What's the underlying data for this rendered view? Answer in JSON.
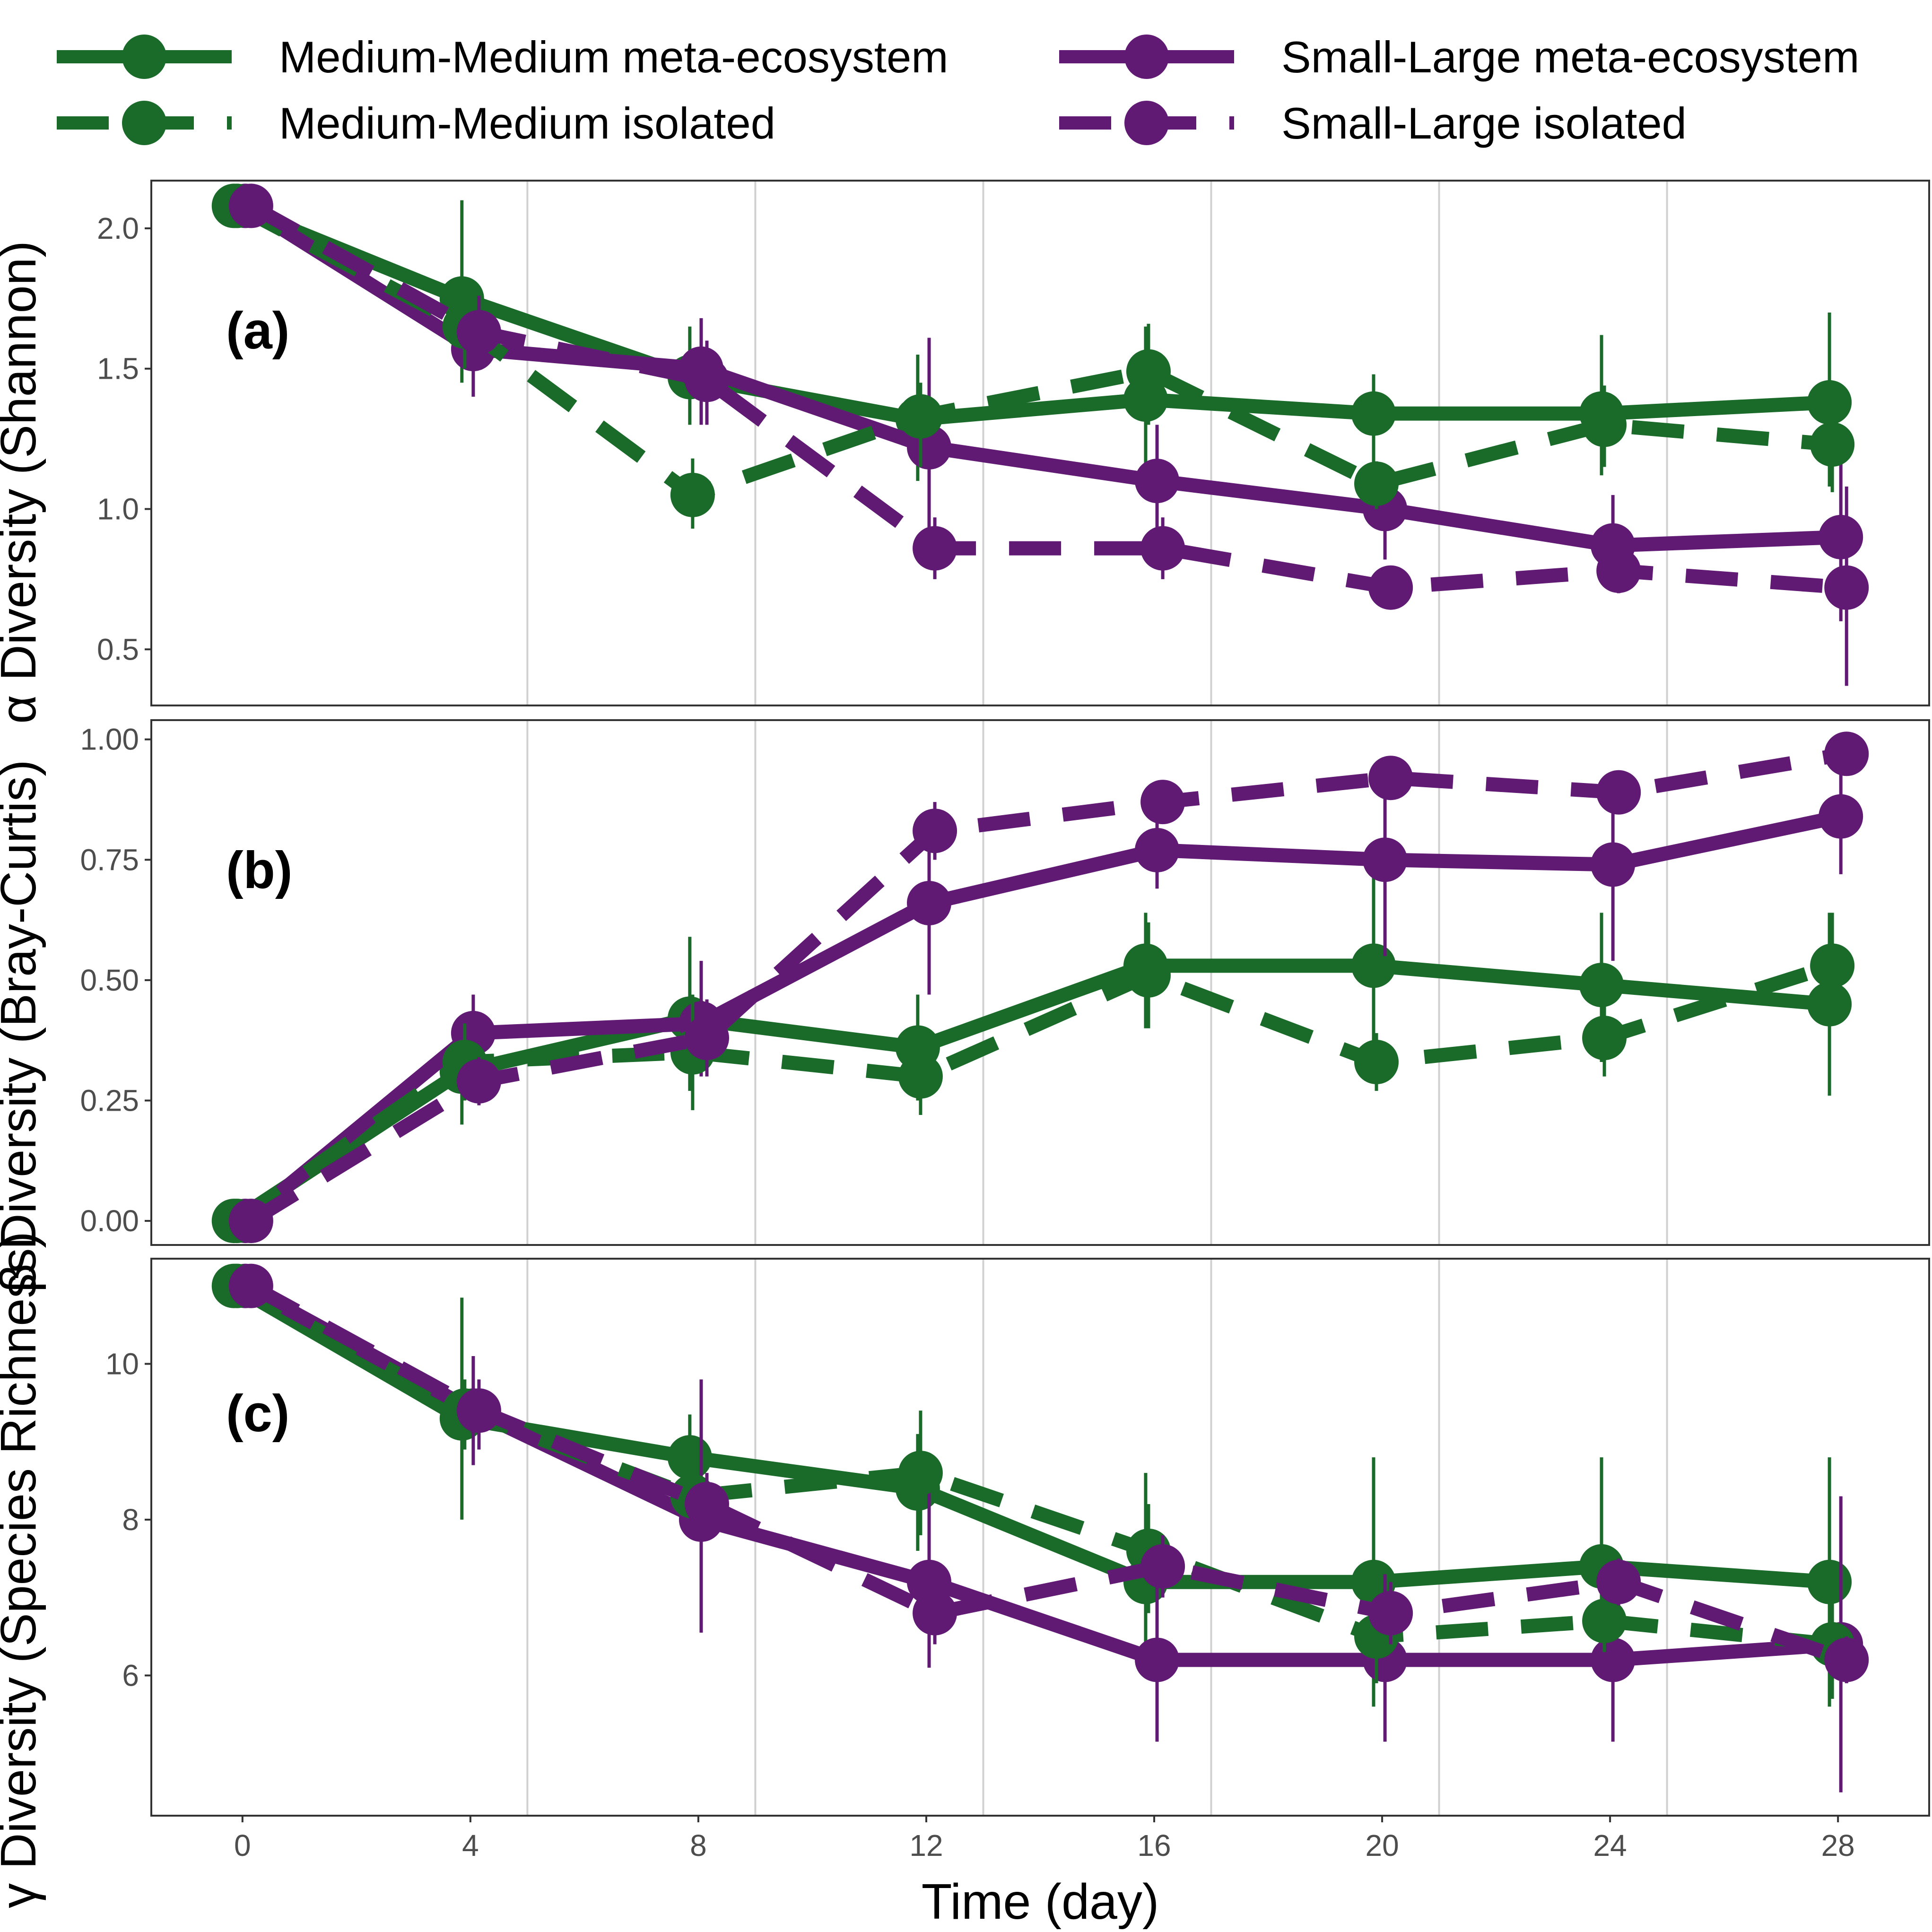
{
  "chart_data": {
    "type": "line",
    "xlabel": "Time (day)",
    "x_ticks": [
      0,
      4,
      8,
      12,
      16,
      20,
      24,
      28
    ],
    "xlim": [
      -1.6,
      29.6
    ],
    "colors": {
      "green": "#1a6b2a",
      "purple": "#601a73",
      "grid": "#d0d0d0",
      "frame": "#333333"
    },
    "legend": {
      "position": "top",
      "entries": [
        {
          "label": "Medium-Medium meta-ecosystem",
          "color": "#1a6b2a",
          "style": "solid"
        },
        {
          "label": "Small-Large meta-ecosystem",
          "color": "#601a73",
          "style": "solid"
        },
        {
          "label": "Medium-Medium isolated",
          "color": "#1a6b2a",
          "style": "dashed"
        },
        {
          "label": "Small-Large isolated",
          "color": "#601a73",
          "style": "dashed"
        }
      ]
    },
    "panels": [
      {
        "tag": "(a)",
        "ylabel": "α Diversity (Shannon)",
        "ylim": [
          0.3,
          2.17
        ],
        "y_ticks": [
          0.5,
          1.0,
          1.5,
          2.0
        ],
        "y_tick_labels": [
          "0.5",
          "1.0",
          "1.5",
          "2.0"
        ],
        "series": [
          {
            "key": "MM_meta",
            "x": [
              0,
              4,
              8,
              12,
              16,
              20,
              24,
              28
            ],
            "values": [
              2.08,
              1.75,
              1.47,
              1.32,
              1.39,
              1.34,
              1.34,
              1.38
            ],
            "err_low": [
              2.08,
              1.45,
              1.3,
              1.1,
              1.15,
              1.15,
              1.12,
              1.08
            ],
            "err_high": [
              2.08,
              2.1,
              1.65,
              1.55,
              1.65,
              1.48,
              1.62,
              1.7
            ]
          },
          {
            "key": "SL_meta",
            "x": [
              0,
              4,
              8,
              12,
              16,
              20,
              24,
              28
            ],
            "values": [
              2.08,
              1.57,
              1.5,
              1.22,
              1.1,
              1.0,
              0.87,
              0.9
            ],
            "err_low": [
              2.08,
              1.4,
              1.3,
              0.8,
              0.9,
              0.82,
              0.72,
              0.6
            ],
            "err_high": [
              2.08,
              1.72,
              1.68,
              1.61,
              1.3,
              1.15,
              1.05,
              1.18
            ]
          },
          {
            "key": "MM_iso",
            "x": [
              0,
              4,
              8,
              12,
              16,
              20,
              24,
              28
            ],
            "values": [
              2.08,
              1.65,
              1.05,
              1.33,
              1.49,
              1.09,
              1.3,
              1.23
            ],
            "err_low": [
              2.08,
              1.5,
              0.93,
              1.15,
              1.3,
              1.0,
              1.15,
              1.06
            ],
            "err_high": [
              2.08,
              1.79,
              1.18,
              1.45,
              1.66,
              1.17,
              1.44,
              1.41
            ]
          },
          {
            "key": "SL_iso",
            "x": [
              0,
              4,
              8,
              12,
              16,
              20,
              24,
              28
            ],
            "values": [
              2.08,
              1.63,
              1.46,
              0.86,
              0.86,
              0.72,
              0.78,
              0.72
            ],
            "err_low": [
              2.08,
              1.5,
              1.3,
              0.75,
              0.75,
              0.7,
              0.7,
              0.37
            ],
            "err_high": [
              2.08,
              1.76,
              1.6,
              0.97,
              0.97,
              0.75,
              0.86,
              1.08
            ]
          }
        ]
      },
      {
        "tag": "(b)",
        "ylabel": "β Diversity (Bray-Curtis)",
        "ylim": [
          -0.05,
          1.04
        ],
        "y_ticks": [
          0.0,
          0.25,
          0.5,
          0.75,
          1.0
        ],
        "y_tick_labels": [
          "0.00",
          "0.25",
          "0.50",
          "0.75",
          "1.00"
        ],
        "series": [
          {
            "key": "MM_meta",
            "x": [
              0,
              4,
              8,
              12,
              16,
              20,
              24,
              28
            ],
            "values": [
              0.0,
              0.31,
              0.42,
              0.36,
              0.53,
              0.53,
              0.49,
              0.45
            ],
            "err_low": [
              0.0,
              0.2,
              0.27,
              0.25,
              0.4,
              0.3,
              0.33,
              0.26
            ],
            "err_high": [
              0.0,
              0.42,
              0.59,
              0.47,
              0.64,
              0.75,
              0.64,
              0.64
            ]
          },
          {
            "key": "SL_meta",
            "x": [
              0,
              4,
              8,
              12,
              16,
              20,
              24,
              28
            ],
            "values": [
              0.0,
              0.39,
              0.41,
              0.66,
              0.77,
              0.75,
              0.74,
              0.84
            ],
            "err_low": [
              0.0,
              0.3,
              0.3,
              0.47,
              0.69,
              0.55,
              0.54,
              0.72
            ],
            "err_high": [
              0.0,
              0.47,
              0.54,
              0.84,
              0.85,
              0.95,
              0.93,
              0.95
            ]
          },
          {
            "key": "MM_iso",
            "x": [
              0,
              4,
              8,
              12,
              16,
              20,
              24,
              28
            ],
            "values": [
              0.0,
              0.33,
              0.35,
              0.3,
              0.51,
              0.33,
              0.38,
              0.53
            ],
            "err_low": [
              0.0,
              0.25,
              0.23,
              0.22,
              0.4,
              0.27,
              0.3,
              0.43
            ],
            "err_high": [
              0.0,
              0.41,
              0.47,
              0.38,
              0.62,
              0.39,
              0.46,
              0.64
            ]
          },
          {
            "key": "SL_iso",
            "x": [
              0,
              4,
              8,
              12,
              16,
              20,
              24,
              28
            ],
            "values": [
              0.0,
              0.29,
              0.38,
              0.81,
              0.87,
              0.92,
              0.89,
              0.97
            ],
            "err_low": [
              0.0,
              0.24,
              0.3,
              0.75,
              0.85,
              0.9,
              0.85,
              0.93
            ],
            "err_high": [
              0.0,
              0.34,
              0.46,
              0.87,
              0.89,
              0.94,
              0.93,
              1.0
            ]
          }
        ]
      },
      {
        "tag": "(c)",
        "ylabel": "γ Diversity (Species Richness)",
        "ylim": [
          4.2,
          11.35
        ],
        "y_ticks": [
          6,
          8,
          10
        ],
        "y_tick_labels": [
          "6",
          "8",
          "10"
        ],
        "series": [
          {
            "key": "MM_meta",
            "x": [
              0,
              4,
              8,
              12,
              16,
              20,
              24,
              28
            ],
            "values": [
              11.0,
              9.3,
              8.8,
              8.4,
              7.2,
              7.2,
              7.4,
              7.2
            ],
            "err_low": [
              11.0,
              8.0,
              8.2,
              7.6,
              6.2,
              5.6,
              6.2,
              5.6
            ],
            "err_high": [
              11.0,
              10.85,
              9.35,
              9.1,
              8.6,
              8.8,
              8.8,
              8.8
            ]
          },
          {
            "key": "SL_meta",
            "x": [
              0,
              4,
              8,
              12,
              16,
              20,
              24,
              28
            ],
            "values": [
              11.0,
              9.4,
              8.0,
              7.2,
              6.2,
              6.2,
              6.2,
              6.4
            ],
            "err_low": [
              11.0,
              8.7,
              6.55,
              6.1,
              5.15,
              5.15,
              5.15,
              4.5
            ],
            "err_high": [
              11.0,
              10.1,
              9.8,
              8.5,
              7.3,
              7.3,
              7.3,
              8.3
            ]
          },
          {
            "key": "MM_iso",
            "x": [
              0,
              4,
              8,
              12,
              16,
              20,
              24,
              28
            ],
            "values": [
              11.0,
              9.4,
              8.3,
              8.6,
              7.6,
              6.5,
              6.7,
              6.4
            ],
            "err_low": [
              11.0,
              8.9,
              8.0,
              7.8,
              6.8,
              5.9,
              6.3,
              5.7
            ],
            "err_high": [
              11.0,
              9.8,
              8.9,
              9.4,
              8.2,
              7.3,
              7.2,
              7.0
            ]
          },
          {
            "key": "SL_iso",
            "x": [
              0,
              4,
              8,
              12,
              16,
              20,
              24,
              28
            ],
            "values": [
              11.0,
              9.4,
              8.2,
              6.8,
              7.4,
              6.8,
              7.2,
              6.2
            ],
            "err_low": [
              11.0,
              8.9,
              7.8,
              6.4,
              7.0,
              6.4,
              6.9,
              5.9
            ],
            "err_high": [
              11.0,
              9.8,
              8.6,
              7.2,
              7.8,
              7.2,
              7.5,
              6.5
            ]
          }
        ]
      }
    ]
  }
}
